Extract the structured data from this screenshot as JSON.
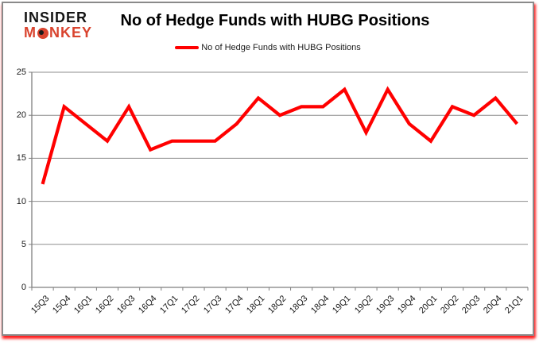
{
  "logo": {
    "line1": "INSIDER",
    "line2_pre": "M",
    "line2_post": "NKEY",
    "accent_color": "#d9432e"
  },
  "title": "No of Hedge Funds with HUBG Positions",
  "legend": {
    "label": "No of Hedge Funds with HUBG Positions",
    "color": "#ff0000"
  },
  "colors": {
    "line": "#ff0000",
    "gridline": "#8e8e8e",
    "axis": "#7f7f7f",
    "frame_border": "#8a8a8a",
    "frame_shadow": "#ff0000",
    "text": "#1a1a1a"
  },
  "chart_data": {
    "type": "line",
    "title": "No of Hedge Funds with HUBG Positions",
    "xlabel": "",
    "ylabel": "",
    "categories": [
      "15Q3",
      "15Q4",
      "16Q1",
      "16Q2",
      "16Q3",
      "16Q4",
      "17Q1",
      "17Q2",
      "17Q3",
      "17Q4",
      "18Q1",
      "18Q2",
      "18Q3",
      "18Q4",
      "19Q1",
      "19Q2",
      "19Q3",
      "19Q4",
      "20Q1",
      "20Q2",
      "20Q3",
      "20Q4",
      "21Q1"
    ],
    "series": [
      {
        "name": "No of Hedge Funds with HUBG Positions",
        "color": "#ff0000",
        "values": [
          12,
          21,
          19,
          17,
          21,
          16,
          17,
          17,
          17,
          19,
          22,
          20,
          21,
          21,
          23,
          18,
          23,
          19,
          17,
          21,
          20,
          22,
          19
        ]
      }
    ],
    "ylim": [
      0,
      25
    ],
    "yticks": [
      0,
      5,
      10,
      15,
      20,
      25
    ],
    "grid": "horizontal",
    "legend_position": "top"
  }
}
